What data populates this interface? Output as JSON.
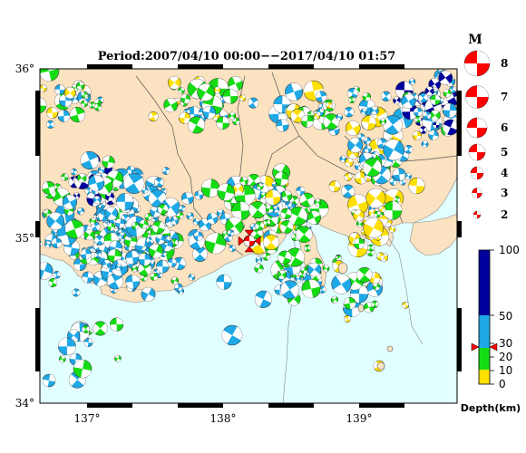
{
  "title": "Period:2007/04/10 00:00−−2017/04/10 01:57",
  "axes": {
    "lat_labels": [
      "36°",
      "35°",
      "34°"
    ],
    "lon_labels": [
      "137°",
      "138°",
      "139°"
    ]
  },
  "magnitude_legend": {
    "header": "M",
    "entries": [
      "8",
      "7",
      "6",
      "5",
      "4",
      "3",
      "2"
    ],
    "color": "#ff0000"
  },
  "depth_legend": {
    "title": "Depth(km)",
    "ticks": [
      "100",
      "50",
      "30",
      "20",
      "10",
      "0"
    ],
    "colors": {
      "shallow": "#ffe000",
      "mid": "#14dc14",
      "deep": "#1ea8e6",
      "very_deep": "#00009c"
    }
  },
  "colors": {
    "land": "#fbe2c0",
    "sea": "#e2ffff",
    "highlight": "#ff0000",
    "frame": "#000000"
  }
}
